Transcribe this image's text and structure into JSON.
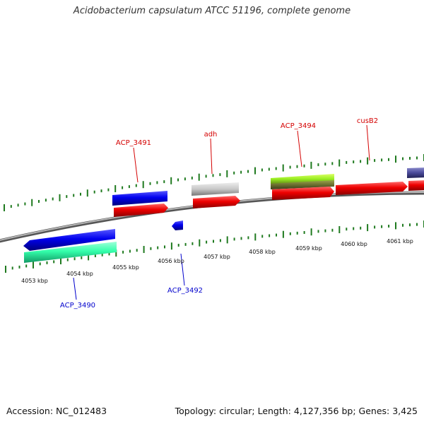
{
  "title": "Acidobacterium capsulatum ATCC 51196, complete genome",
  "footer": {
    "accession": "Accession: NC_012483",
    "summary": "Topology: circular; Length: 4,127,356 bp; Genes: 3,425"
  },
  "colors": {
    "backbone": "#8a8a8a",
    "ticks": "#1f7a1f",
    "forward_label": "#d40000",
    "reverse_label": "#0000cc"
  },
  "scale": [
    {
      "label": "4053 kbp"
    },
    {
      "label": "4054 kbp"
    },
    {
      "label": "4055 kbp"
    },
    {
      "label": "4056 kbp"
    },
    {
      "label": "4057 kbp"
    },
    {
      "label": "4058 kbp"
    },
    {
      "label": "4059 kbp"
    },
    {
      "label": "4060 kbp"
    },
    {
      "label": "4061 kbp"
    }
  ],
  "gene_labels": [
    {
      "text": "ACP_3491",
      "strand": "forward"
    },
    {
      "text": "adh",
      "strand": "forward"
    },
    {
      "text": "ACP_3494",
      "strand": "forward"
    },
    {
      "text": "cusB2",
      "strand": "forward"
    },
    {
      "text": "ACP_3490",
      "strand": "reverse"
    },
    {
      "text": "ACP_3492",
      "strand": "reverse"
    }
  ]
}
